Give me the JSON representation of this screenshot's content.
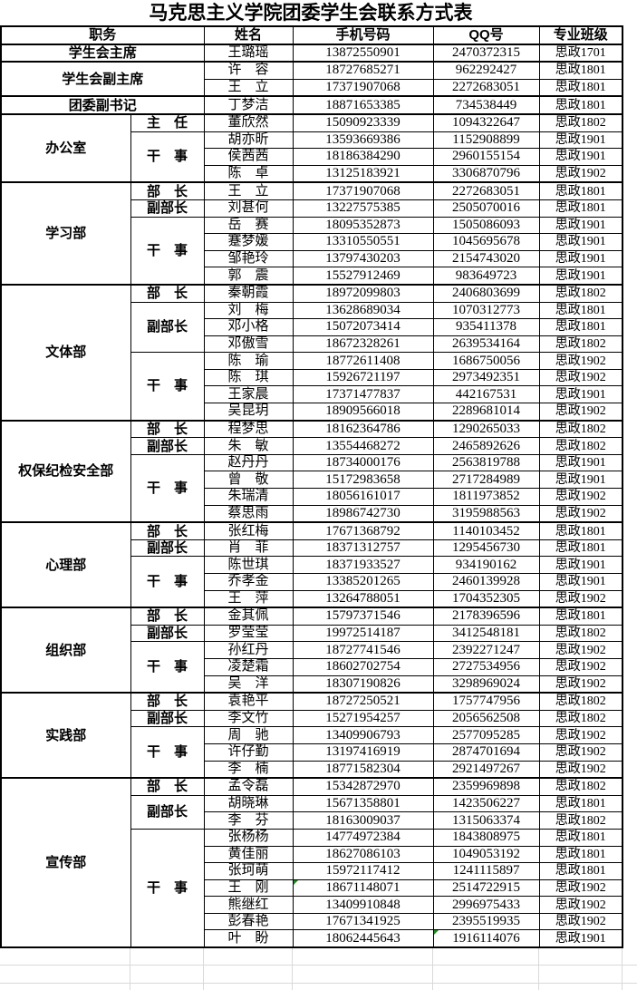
{
  "title": "马克思主义学院团委学生会联系方式表",
  "colors": {
    "border": "#000000",
    "empty_gridline": "#d9d9d9",
    "error_indicator_green": "#218a21",
    "text": "#000000",
    "background": "#ffffff"
  },
  "icons": {
    "error_indicator": "excel-green-corner-triangle"
  },
  "table": {
    "headers": [
      "职务",
      "姓名",
      "手机号码",
      "QQ号",
      "专业班级"
    ],
    "groups": [
      {
        "position": "学生会主席",
        "rows": [
          {
            "name": "王璐瑶",
            "phone": "13872550901",
            "qq": "2470372315",
            "class": "思政1701"
          }
        ]
      },
      {
        "position": "学生会副主席",
        "rows": [
          {
            "name": "许　容",
            "phone": "18727685271",
            "qq": "962292427",
            "class": "思政1801"
          },
          {
            "name": "王　立",
            "phone": "17371907068",
            "qq": "2272683051",
            "class": "思政1801"
          }
        ]
      },
      {
        "position": "团委副书记",
        "rows": [
          {
            "name": "丁梦洁",
            "phone": "18871653385",
            "qq": "734538449",
            "class": "思政1801"
          }
        ]
      },
      {
        "position": "办公室",
        "roles": [
          {
            "role": "主　任",
            "rows": [
              {
                "name": "董欣然",
                "phone": "15090923339",
                "qq": "1094322647",
                "class": "思政1802"
              }
            ]
          },
          {
            "role": "干　事",
            "rows": [
              {
                "name": "胡亦昕",
                "phone": "13593669386",
                "qq": "1152908899",
                "class": "思政1901"
              },
              {
                "name": "侯茜茜",
                "phone": "18186384290",
                "qq": "2960155154",
                "class": "思政1901"
              },
              {
                "name": "陈　卓",
                "phone": "13125183921",
                "qq": "3306870796",
                "class": "思政1902"
              }
            ]
          }
        ]
      },
      {
        "position": "学习部",
        "roles": [
          {
            "role": "部　长",
            "rows": [
              {
                "name": "王　立",
                "phone": "17371907068",
                "qq": "2272683051",
                "class": "思政1801"
              }
            ]
          },
          {
            "role": "副部长",
            "rows": [
              {
                "name": "刘甚何",
                "phone": "13227575385",
                "qq": "2505070016",
                "class": "思政1801"
              }
            ]
          },
          {
            "role": "干　事",
            "rows": [
              {
                "name": "岳　赛",
                "phone": "18095352873",
                "qq": "1505086093",
                "class": "思政1901"
              },
              {
                "name": "蹇梦媛",
                "phone": "13310550551",
                "qq": "1045695678",
                "class": "思政1901"
              },
              {
                "name": "邹艳玲",
                "phone": "13797430203",
                "qq": "2154743020",
                "class": "思政1901"
              },
              {
                "name": "郭　震",
                "phone": "15527912469",
                "qq": "983649723",
                "class": "思政1901"
              }
            ]
          }
        ]
      },
      {
        "position": "文体部",
        "roles": [
          {
            "role": "部　长",
            "rows": [
              {
                "name": "秦朝霞",
                "phone": "18972099803",
                "qq": "2406803699",
                "class": "思政1802"
              }
            ]
          },
          {
            "role": "副部长",
            "rows": [
              {
                "name": "刘　梅",
                "phone": "13628689034",
                "qq": "1070312773",
                "class": "思政1801"
              },
              {
                "name": "邓小格",
                "phone": "15072073414",
                "qq": "935411378",
                "class": "思政1801"
              },
              {
                "name": "邓傲雪",
                "phone": "18672328261",
                "qq": "2639534164",
                "class": "思政1802"
              }
            ]
          },
          {
            "role": "干　事",
            "rows": [
              {
                "name": "陈　瑜",
                "phone": "18772611408",
                "qq": "1686750056",
                "class": "思政1902"
              },
              {
                "name": "陈　琪",
                "phone": "15926721197",
                "qq": "2973492351",
                "class": "思政1902"
              },
              {
                "name": "王家晨",
                "phone": "17371477837",
                "qq": "442167531",
                "class": "思政1901"
              },
              {
                "name": "吴昆玥",
                "phone": "18909566018",
                "qq": "2289681014",
                "class": "思政1902"
              }
            ]
          }
        ]
      },
      {
        "position": "权保纪检安全部",
        "roles": [
          {
            "role": "部　长",
            "rows": [
              {
                "name": "程梦思",
                "phone": "18162364786",
                "qq": "1290265033",
                "class": "思政1802"
              }
            ]
          },
          {
            "role": "副部长",
            "rows": [
              {
                "name": "朱　敏",
                "phone": "13554468272",
                "qq": "2465892626",
                "class": "思政1802"
              }
            ]
          },
          {
            "role": "干　事",
            "rows": [
              {
                "name": "赵丹丹",
                "phone": "18734000176",
                "qq": "2563819788",
                "class": "思政1901"
              },
              {
                "name": "曾　敬",
                "phone": "15172983658",
                "qq": "2717284989",
                "class": "思政1901"
              },
              {
                "name": "朱瑞清",
                "phone": "18056161017",
                "qq": "1811973852",
                "class": "思政1902"
              },
              {
                "name": "蔡思雨",
                "phone": "18986742730",
                "qq": "3195988563",
                "class": "思政1902"
              }
            ]
          }
        ]
      },
      {
        "position": "心理部",
        "roles": [
          {
            "role": "部　长",
            "rows": [
              {
                "name": "张红梅",
                "phone": "17671368792",
                "qq": "1140103452",
                "class": "思政1801"
              }
            ]
          },
          {
            "role": "副部长",
            "rows": [
              {
                "name": "肖　菲",
                "phone": "18371312757",
                "qq": "1295456730",
                "class": "思政1801"
              }
            ]
          },
          {
            "role": "干　事",
            "rows": [
              {
                "name": "陈世琪",
                "phone": "18371933527",
                "qq": "934190162",
                "class": "思政1901"
              },
              {
                "name": "乔孝金",
                "phone": "13385201265",
                "qq": "2460139928",
                "class": "思政1901"
              },
              {
                "name": "王　萍",
                "phone": "13264788051",
                "qq": "1704352305",
                "class": "思政1902"
              }
            ]
          }
        ]
      },
      {
        "position": "组织部",
        "roles": [
          {
            "role": "部　长",
            "rows": [
              {
                "name": "金其佩",
                "phone": "15797371546",
                "qq": "2178396596",
                "class": "思政1801"
              }
            ]
          },
          {
            "role": "副部长",
            "rows": [
              {
                "name": "罗莹莹",
                "phone": "19972514187",
                "qq": "3412548181",
                "class": "思政1802"
              }
            ]
          },
          {
            "role": "干　事",
            "rows": [
              {
                "name": "孙红丹",
                "phone": "18727741546",
                "qq": "2392271247",
                "class": "思政1902"
              },
              {
                "name": "凌楚霜",
                "phone": "18602702754",
                "qq": "2727534956",
                "class": "思政1902"
              },
              {
                "name": "吴　洋",
                "phone": "18307190826",
                "qq": "3298969024",
                "class": "思政1902"
              }
            ]
          }
        ]
      },
      {
        "position": "实践部",
        "roles": [
          {
            "role": "部　长",
            "rows": [
              {
                "name": "袁艳平",
                "phone": "18727250521",
                "qq": "1757747956",
                "class": "思政1802"
              }
            ]
          },
          {
            "role": "副部长",
            "rows": [
              {
                "name": "李文竹",
                "phone": "15271954257",
                "qq": "2056562508",
                "class": "思政1802"
              }
            ]
          },
          {
            "role": "干　事",
            "rows": [
              {
                "name": "周　驰",
                "phone": "13409906793",
                "qq": "2577095285",
                "class": "思政1902"
              },
              {
                "name": "许仔勤",
                "phone": "13197416919",
                "qq": "2874701694",
                "class": "思政1902"
              },
              {
                "name": "李　楠",
                "phone": "18771582304",
                "qq": "2921497267",
                "class": "思政1902"
              }
            ]
          }
        ]
      },
      {
        "position": "宣传部",
        "roles": [
          {
            "role": "部　长",
            "rows": [
              {
                "name": "孟令磊",
                "phone": "15342872970",
                "qq": "2359969898",
                "class": "思政1802"
              }
            ]
          },
          {
            "role": "副部长",
            "rows": [
              {
                "name": "胡晓琳",
                "phone": "15671358801",
                "qq": "1423506227",
                "class": "思政1801"
              },
              {
                "name": "李　芬",
                "phone": "18163009037",
                "qq": "1315063374",
                "class": "思政1802"
              }
            ]
          },
          {
            "role": "干　事",
            "rows": [
              {
                "name": "张杨杨",
                "phone": "14774972384",
                "qq": "1843808975",
                "class": "思政1801"
              },
              {
                "name": "黄佳丽",
                "phone": "18627086103",
                "qq": "1049053192",
                "class": "思政1801"
              },
              {
                "name": "张珂萌",
                "phone": "15972117412",
                "qq": "1241115897",
                "class": "思政1801"
              },
              {
                "name": "王　刚",
                "phone": "18671148071",
                "qq": "2514722915",
                "class": "思政1902",
                "flag": "phone"
              },
              {
                "name": "熊继红",
                "phone": "13409910848",
                "qq": "2996975433",
                "class": "思政1902"
              },
              {
                "name": "彭春艳",
                "phone": "17671341925",
                "qq": "2395519935",
                "class": "思政1902"
              },
              {
                "name": "叶　盼",
                "phone": "18062445643",
                "qq": "1916114076",
                "class": "思政1901",
                "flag": "qq"
              }
            ]
          }
        ]
      }
    ]
  }
}
